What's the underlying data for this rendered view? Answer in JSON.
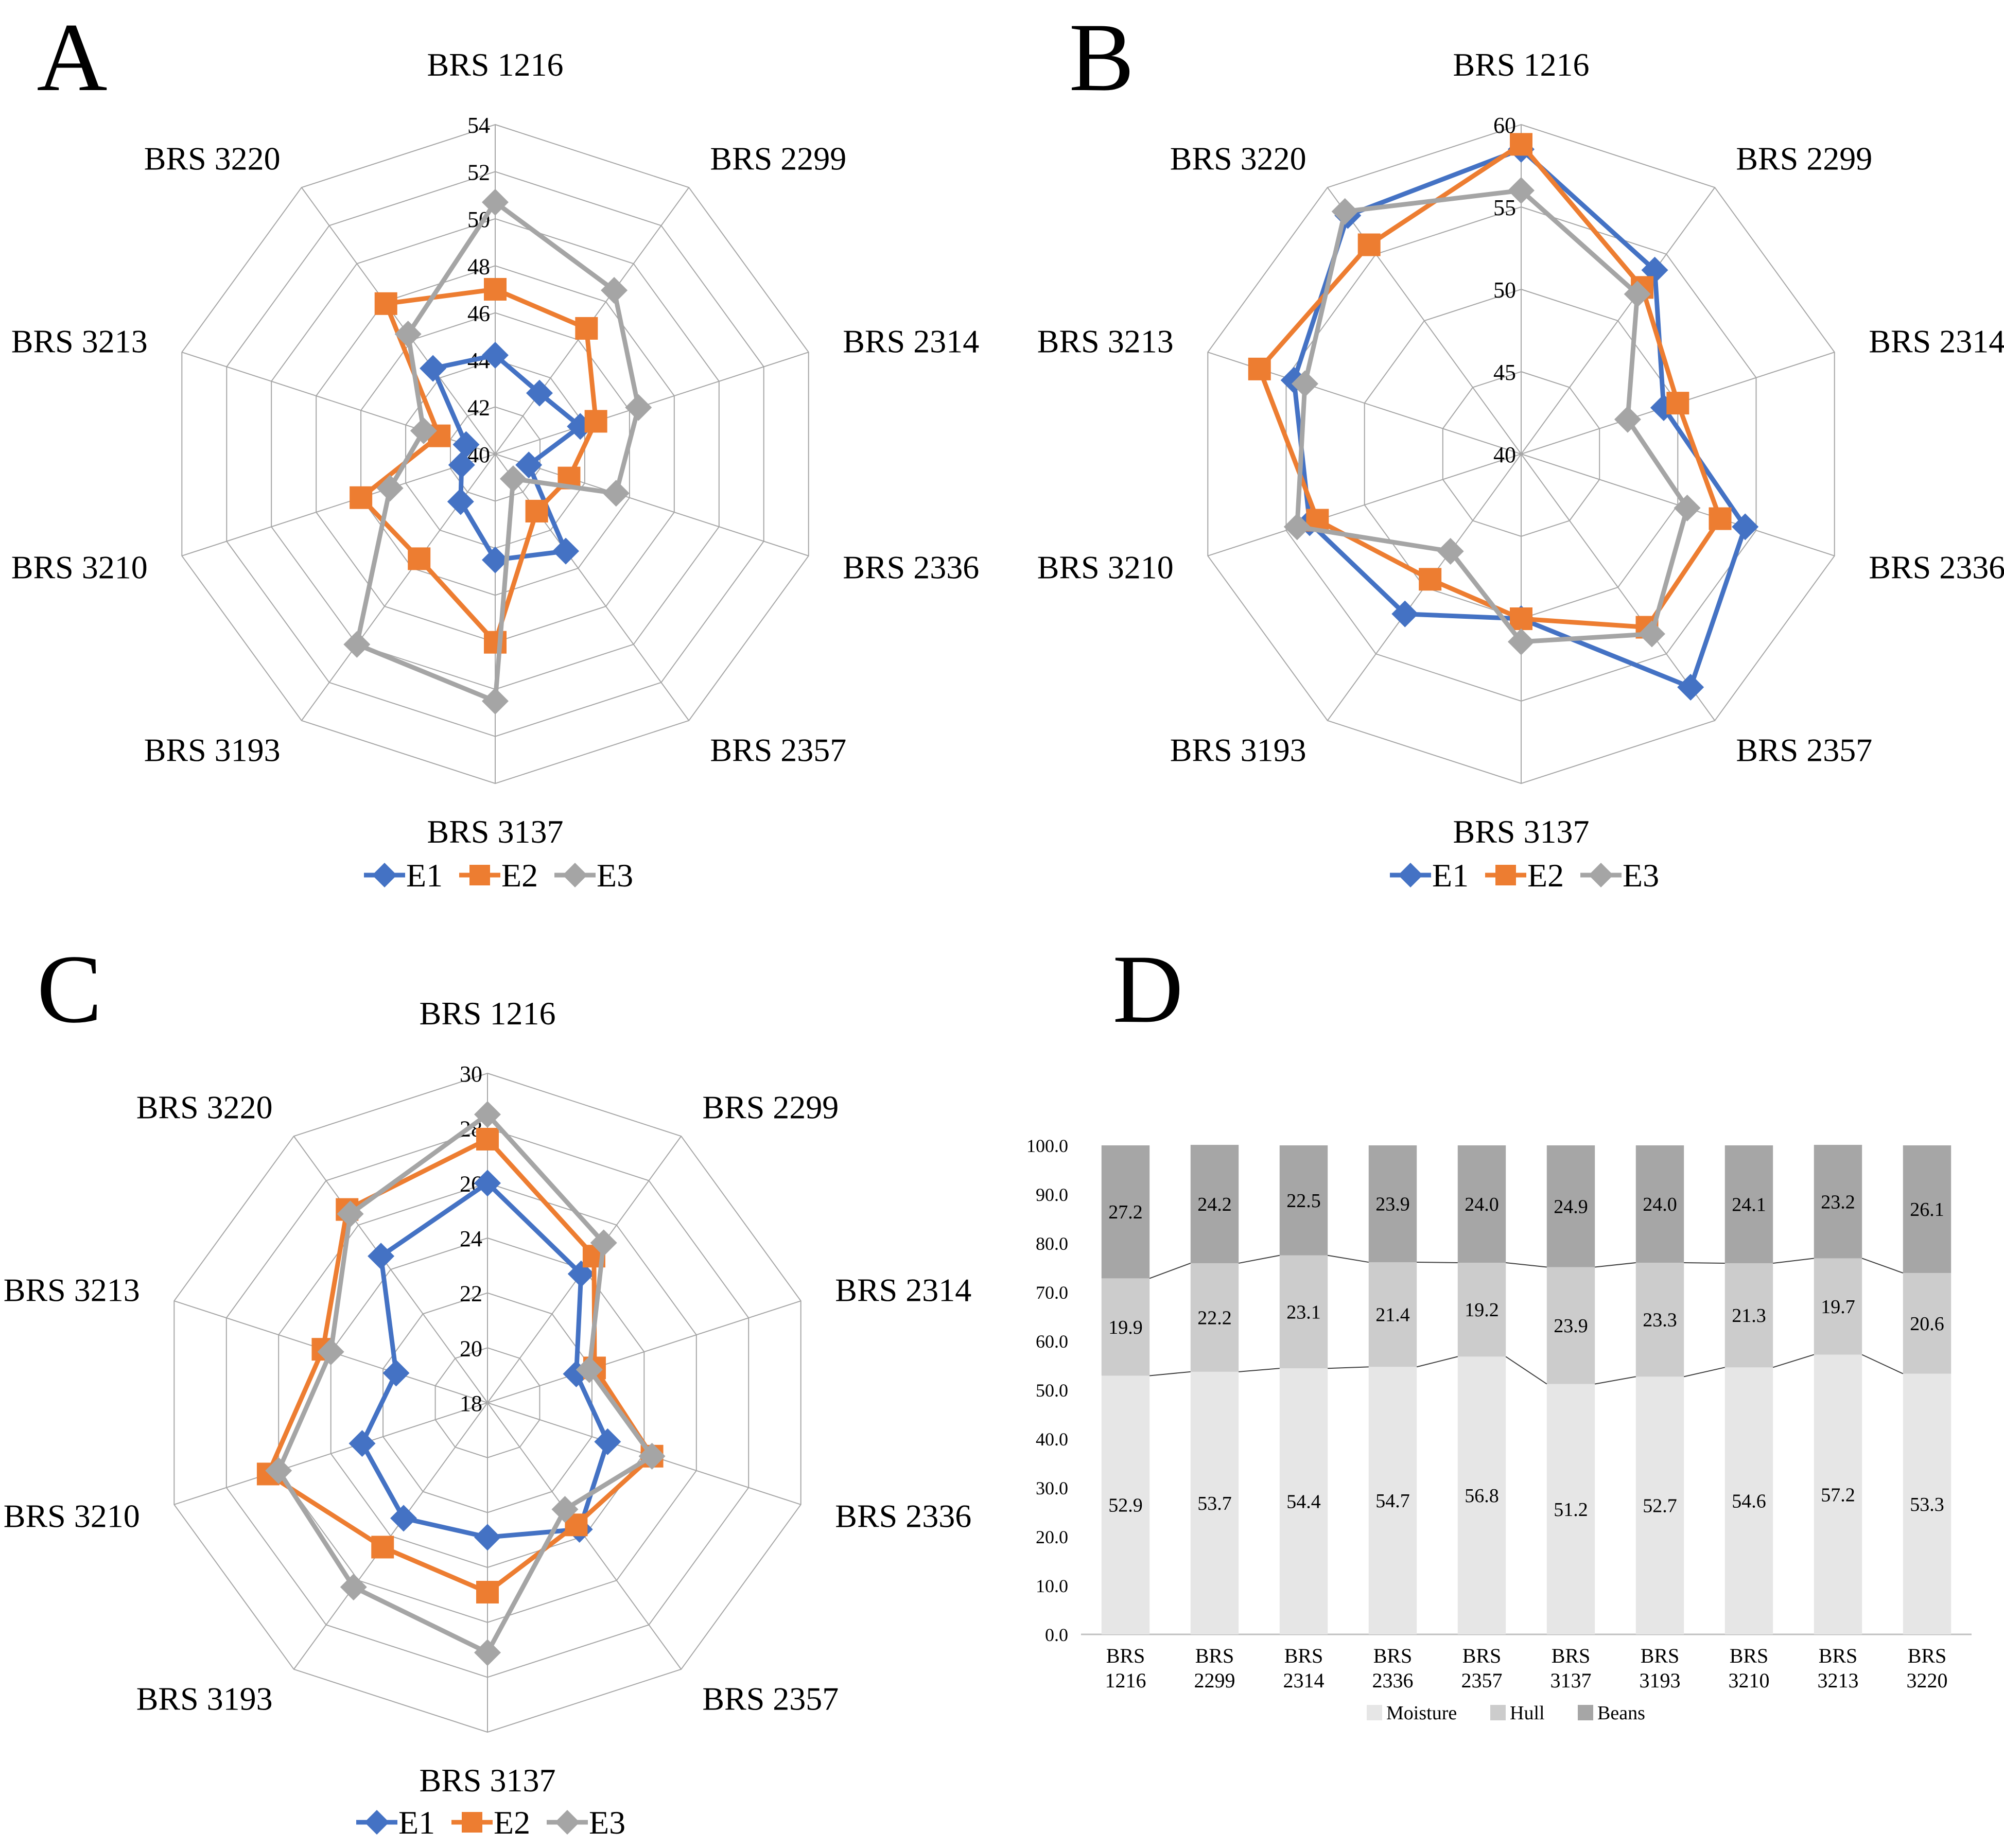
{
  "colors": {
    "E1": "#4472c4",
    "E2": "#ed7d31",
    "E3": "#a5a5a5",
    "Moisture": "#e6e6e6",
    "Hull": "#cccccc",
    "Beans": "#a6a6a6",
    "grid": "#a6a6a6"
  },
  "chart_data": [
    {
      "panel": "A",
      "type": "radar",
      "categories": [
        "BRS 1216",
        "BRS 2299",
        "BRS 2314",
        "BRS 2336",
        "BRS 2357",
        "BRS 3137",
        "BRS 3193",
        "BRS 3210",
        "BRS 3213",
        "BRS 3220"
      ],
      "axis_min": 40,
      "axis_max": 54,
      "ticks": [
        "40",
        "42",
        "44",
        "46",
        "48",
        "50",
        "52",
        "54"
      ],
      "legend": [
        "E1",
        "E2",
        "E3"
      ],
      "series": [
        {
          "name": "E1",
          "values": [
            44.2,
            43.2,
            43.8,
            41.5,
            45.1,
            44.5,
            42.5,
            41.5,
            41.3,
            44.5
          ]
        },
        {
          "name": "E2",
          "values": [
            47.0,
            46.6,
            44.5,
            43.3,
            43.0,
            48.0,
            45.5,
            46.0,
            42.5,
            47.9
          ]
        },
        {
          "name": "E3",
          "values": [
            50.7,
            48.6,
            46.4,
            45.4,
            41.3,
            50.5,
            50.0,
            44.7,
            43.2,
            46.3
          ]
        }
      ]
    },
    {
      "panel": "B",
      "type": "radar",
      "categories": [
        "BRS 1216",
        "BRS 2299",
        "BRS 2314",
        "BRS 2336",
        "BRS 2357",
        "BRS 3137",
        "BRS 3193",
        "BRS 3210",
        "BRS 3213",
        "BRS 3220"
      ],
      "axis_min": 40,
      "axis_max": 60,
      "ticks": [
        "40",
        "45",
        "50",
        "55",
        "60"
      ],
      "legend": [
        "E1",
        "E2",
        "E3"
      ],
      "series": [
        {
          "name": "E1",
          "values": [
            58.5,
            53.8,
            49.1,
            54.3,
            57.5,
            50.0,
            52.0,
            53.5,
            54.5,
            57.9
          ]
        },
        {
          "name": "E2",
          "values": [
            58.8,
            52.5,
            50.0,
            52.7,
            53.0,
            50.0,
            49.4,
            53.0,
            56.7,
            55.7
          ]
        },
        {
          "name": "E3",
          "values": [
            56.0,
            52.0,
            46.8,
            50.6,
            53.5,
            51.4,
            47.3,
            54.3,
            53.8,
            58.2
          ]
        }
      ]
    },
    {
      "panel": "C",
      "type": "radar",
      "categories": [
        "BRS 1216",
        "BRS 2299",
        "BRS 2314",
        "BRS 2336",
        "BRS 2357",
        "BRS 3137",
        "BRS 3193",
        "BRS 3210",
        "BRS 3213",
        "BRS 3220"
      ],
      "axis_min": 18,
      "axis_max": 30,
      "ticks": [
        "18",
        "20",
        "22",
        "24",
        "26",
        "28",
        "30"
      ],
      "legend": [
        "E1",
        "E2",
        "E3"
      ],
      "series": [
        {
          "name": "E1",
          "values": [
            26.0,
            23.8,
            21.4,
            22.6,
            23.7,
            22.9,
            23.2,
            22.8,
            21.5,
            24.6
          ]
        },
        {
          "name": "E2",
          "values": [
            27.6,
            24.6,
            22.1,
            24.3,
            23.5,
            24.9,
            24.5,
            26.4,
            24.3,
            26.7
          ]
        },
        {
          "name": "E3",
          "values": [
            28.5,
            25.2,
            21.9,
            24.3,
            22.8,
            27.1,
            26.3,
            26.0,
            24.0,
            26.5
          ]
        }
      ]
    },
    {
      "panel": "D",
      "type": "stacked_bar",
      "categories": [
        [
          "BRS",
          "1216"
        ],
        [
          "BRS",
          "2299"
        ],
        [
          "BRS",
          "2314"
        ],
        [
          "BRS",
          "2336"
        ],
        [
          "BRS",
          "2357"
        ],
        [
          "BRS",
          "3137"
        ],
        [
          "BRS",
          "3193"
        ],
        [
          "BRS",
          "3210"
        ],
        [
          "BRS",
          "3213"
        ],
        [
          "BRS",
          "3220"
        ]
      ],
      "ylim": [
        0,
        100
      ],
      "yticks": [
        "0.0",
        "10.0",
        "20.0",
        "30.0",
        "40.0",
        "50.0",
        "60.0",
        "70.0",
        "80.0",
        "90.0",
        "100.0"
      ],
      "legend": [
        "Moisture",
        "Hull",
        "Beans"
      ],
      "series": [
        {
          "name": "Moisture",
          "values": [
            52.9,
            53.7,
            54.4,
            54.7,
            56.8,
            51.2,
            52.7,
            54.6,
            57.2,
            53.3
          ],
          "labels": [
            "52.9",
            "53.7",
            "54.4",
            "54.7",
            "56.8",
            "51.2",
            "52.7",
            "54.6",
            "57.2",
            "53.3"
          ]
        },
        {
          "name": "Hull",
          "values": [
            19.9,
            22.2,
            23.1,
            21.4,
            19.2,
            23.9,
            23.3,
            21.3,
            19.7,
            20.6
          ],
          "labels": [
            "19.9",
            "22.2",
            "23.1",
            "21.4",
            "19.2",
            "23.9",
            "23.3",
            "21.3",
            "19.7",
            "20.6"
          ]
        },
        {
          "name": "Beans",
          "values": [
            27.2,
            24.2,
            22.5,
            23.9,
            24.0,
            24.9,
            24.0,
            24.1,
            23.2,
            26.1
          ],
          "labels": [
            "27.2",
            "24.2",
            "22.5",
            "23.9",
            "24.0",
            "24.9",
            "24.0",
            "24.1",
            "23.2",
            "26.1"
          ]
        }
      ]
    }
  ]
}
